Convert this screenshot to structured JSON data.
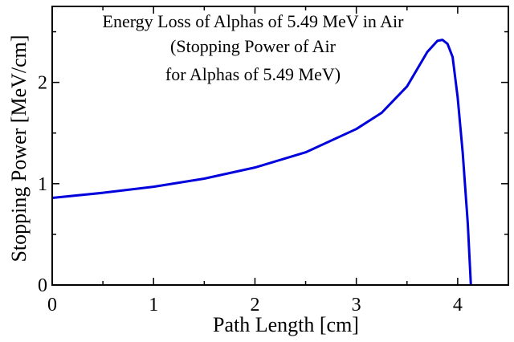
{
  "chart_data": {
    "type": "line",
    "title": [
      "Energy Loss of Alphas of 5.49 MeV in Air",
      "(Stopping Power of Air",
      "for Alphas of 5.49 MeV)"
    ],
    "x_label": "Path Length [cm]",
    "y_label": "Stopping Power [MeV/cm]",
    "x": [
      0,
      0.5,
      1.0,
      1.5,
      2.0,
      2.5,
      3.0,
      3.25,
      3.5,
      3.6,
      3.7,
      3.8,
      3.85,
      3.9,
      3.95,
      4.0,
      4.05,
      4.1,
      4.13
    ],
    "series": [
      {
        "name": "Stopping Power",
        "color": "#0000dd",
        "values": [
          0.86,
          0.91,
          0.97,
          1.05,
          1.16,
          1.31,
          1.54,
          1.7,
          1.96,
          2.13,
          2.3,
          2.41,
          2.42,
          2.38,
          2.25,
          1.85,
          1.3,
          0.6,
          0
        ]
      }
    ],
    "xlim": [
      0,
      4.5
    ],
    "ylim": [
      0,
      2.75
    ],
    "xticks": [
      0,
      1,
      2,
      3,
      4
    ],
    "yticks": [
      0,
      1,
      2
    ],
    "xminorticks": [
      0.5,
      1.5,
      2.5,
      3.5,
      4.5
    ],
    "yminorticks": [
      0.5,
      1.5,
      2.5
    ]
  }
}
